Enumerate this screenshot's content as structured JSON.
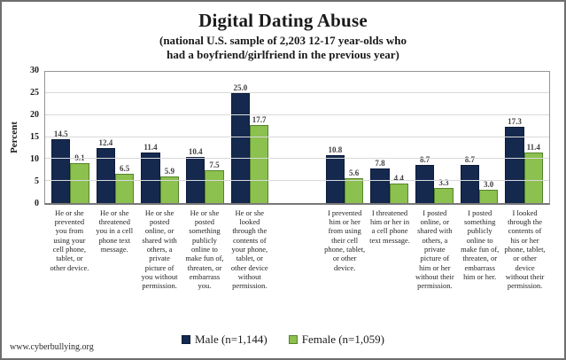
{
  "header": {
    "title": "Digital Dating Abuse",
    "subtitle_line1": "(national U.S. sample of 2,203 12-17 year-olds who",
    "subtitle_line2": "had a boyfriend/girlfriend in the previous year)"
  },
  "footer": {
    "url": "www.cyberbullying.org"
  },
  "chart_data": {
    "type": "bar",
    "title": "Digital Dating Abuse",
    "subtitle": "(national U.S. sample of 2,203 12-17 year-olds who had a boyfriend/girlfriend in the previous year)",
    "ylabel": "Percent",
    "ylim": [
      0,
      30
    ],
    "yticks": [
      0,
      5,
      10,
      15,
      20,
      25,
      30
    ],
    "grid": true,
    "legend_position": "bottom",
    "series": [
      {
        "name": "Male (n=1,144)",
        "color": "#15294f",
        "border": "#0d1b38"
      },
      {
        "name": "Female (n=1,059)",
        "color": "#8cc04f",
        "border": "#55842c"
      }
    ],
    "groups": [
      {
        "categories": [
          "He or she prevented you from using your cell phone, tablet, or other device.",
          "He or she threatened you in a cell phone text message.",
          "He or she posted online, or shared with others, a private picture of you without permission.",
          "He or she posted something publicly online to make fun of, threaten, or embarrass you.",
          "He or she looked through the contents of your phone, tablet, or other device without permission."
        ],
        "series_values": [
          [
            14.5,
            12.4,
            11.4,
            10.4,
            25.0
          ],
          [
            9.1,
            6.5,
            5.9,
            7.5,
            17.7
          ]
        ]
      },
      {
        "categories": [
          "I prevented him or her from using their cell phone, tablet, or other device.",
          "I threatened him or her in a cell phone text message.",
          "I posted online, or shared with others, a private picture of him or her without their permission.",
          "I posted something publicly online to make fun of, threaten, or embarrass him or her.",
          "I looked through the contents of his or her phone, tablet, or other device without their permission."
        ],
        "series_values": [
          [
            10.8,
            7.8,
            8.7,
            8.7,
            17.3
          ],
          [
            5.6,
            4.4,
            3.3,
            3.0,
            11.4
          ]
        ]
      }
    ]
  }
}
